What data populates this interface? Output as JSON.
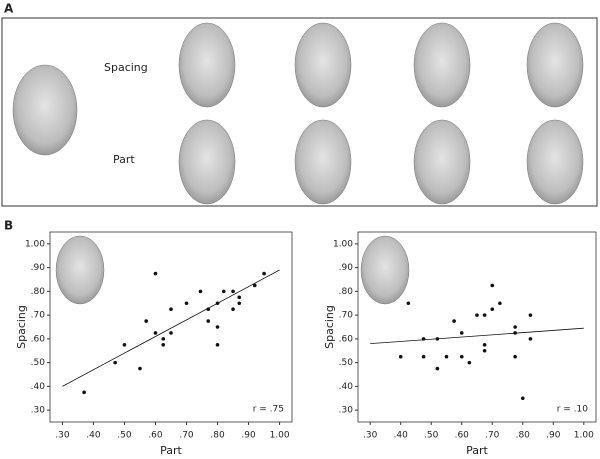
{
  "panel_a": {
    "label": "A",
    "row_labels": [
      "Spacing",
      "Part"
    ]
  },
  "panel_b": {
    "label": "B"
  },
  "chart_data": [
    {
      "type": "scatter",
      "x_label": "Part",
      "y_label": "Spacing",
      "annotation": "r = .75",
      "xlim": [
        0.26,
        1.04
      ],
      "ylim": [
        0.25,
        1.05
      ],
      "xticks": [
        {
          "value": 0.3,
          "label": ".30"
        },
        {
          "value": 0.4,
          "label": ".40"
        },
        {
          "value": 0.5,
          "label": ".50"
        },
        {
          "value": 0.6,
          "label": ".60"
        },
        {
          "value": 0.7,
          "label": ".70"
        },
        {
          "value": 0.8,
          "label": ".80"
        },
        {
          "value": 0.9,
          "label": ".90"
        },
        {
          "value": 1.0,
          "label": "1.00"
        }
      ],
      "yticks": [
        {
          "value": 0.3,
          "label": ".30"
        },
        {
          "value": 0.4,
          "label": ".40"
        },
        {
          "value": 0.5,
          "label": ".50"
        },
        {
          "value": 0.6,
          "label": ".60"
        },
        {
          "value": 0.7,
          "label": ".70"
        },
        {
          "value": 0.8,
          "label": ".80"
        },
        {
          "value": 0.9,
          "label": ".90"
        },
        {
          "value": 1.0,
          "label": "1.00"
        }
      ],
      "x": [
        0.37,
        0.47,
        0.5,
        0.55,
        0.57,
        0.6,
        0.6,
        0.625,
        0.625,
        0.65,
        0.65,
        0.7,
        0.745,
        0.77,
        0.77,
        0.8,
        0.8,
        0.8,
        0.82,
        0.85,
        0.85,
        0.87,
        0.87,
        0.92,
        0.95
      ],
      "y": [
        0.375,
        0.5,
        0.575,
        0.475,
        0.675,
        0.875,
        0.625,
        0.6,
        0.575,
        0.625,
        0.725,
        0.75,
        0.8,
        0.675,
        0.725,
        0.75,
        0.65,
        0.575,
        0.8,
        0.725,
        0.8,
        0.75,
        0.775,
        0.825,
        0.875
      ],
      "fit_line": {
        "x": [
          0.3,
          1.0
        ],
        "y": [
          0.4,
          0.89
        ]
      },
      "color": "#111"
    },
    {
      "type": "scatter",
      "x_label": "Part",
      "y_label": "Spacing",
      "annotation": "r = .10",
      "xlim": [
        0.26,
        1.04
      ],
      "ylim": [
        0.25,
        1.05
      ],
      "xticks": [
        {
          "value": 0.3,
          "label": ".30"
        },
        {
          "value": 0.4,
          "label": ".40"
        },
        {
          "value": 0.5,
          "label": ".50"
        },
        {
          "value": 0.6,
          "label": ".60"
        },
        {
          "value": 0.7,
          "label": ".70"
        },
        {
          "value": 0.8,
          "label": ".80"
        },
        {
          "value": 0.9,
          "label": ".90"
        },
        {
          "value": 1.0,
          "label": "1.00"
        }
      ],
      "yticks": [
        {
          "value": 0.3,
          "label": ".30"
        },
        {
          "value": 0.4,
          "label": ".40"
        },
        {
          "value": 0.5,
          "label": ".50"
        },
        {
          "value": 0.6,
          "label": ".60"
        },
        {
          "value": 0.7,
          "label": ".70"
        },
        {
          "value": 0.8,
          "label": ".80"
        },
        {
          "value": 0.9,
          "label": ".90"
        },
        {
          "value": 1.0,
          "label": "1.00"
        }
      ],
      "x": [
        0.4,
        0.425,
        0.475,
        0.475,
        0.52,
        0.52,
        0.55,
        0.575,
        0.6,
        0.6,
        0.625,
        0.65,
        0.675,
        0.675,
        0.675,
        0.7,
        0.7,
        0.725,
        0.775,
        0.775,
        0.775,
        0.8,
        0.825,
        0.825
      ],
      "y": [
        0.525,
        0.75,
        0.6,
        0.525,
        0.475,
        0.6,
        0.525,
        0.675,
        0.625,
        0.525,
        0.5,
        0.7,
        0.575,
        0.55,
        0.7,
        0.725,
        0.825,
        0.75,
        0.65,
        0.625,
        0.525,
        0.35,
        0.7,
        0.6
      ],
      "fit_line": {
        "x": [
          0.3,
          1.0
        ],
        "y": [
          0.58,
          0.645
        ]
      },
      "color": "#111"
    }
  ]
}
